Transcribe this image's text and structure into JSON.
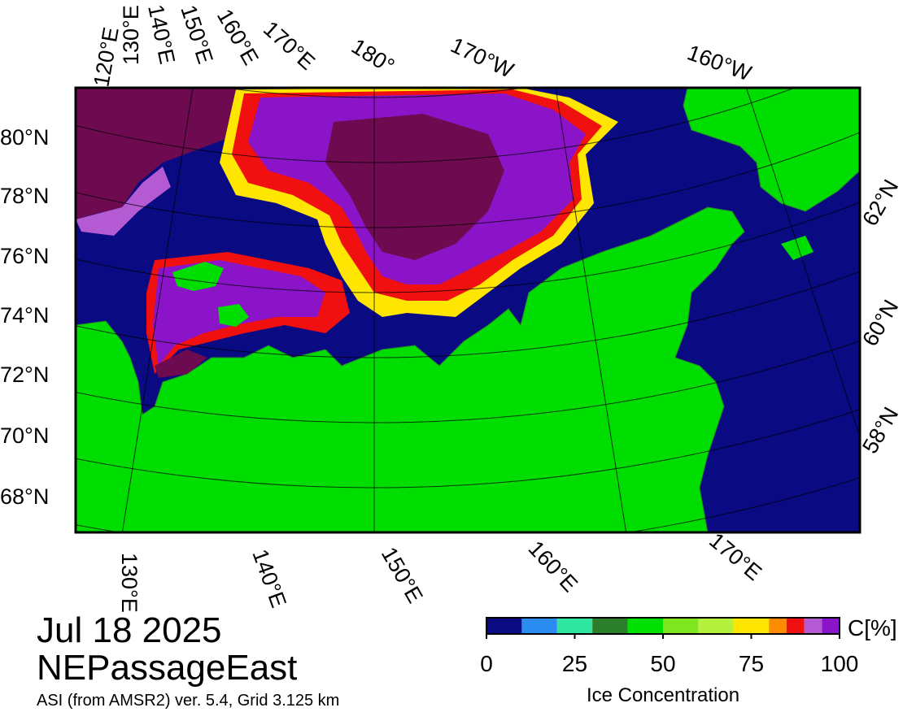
{
  "map": {
    "top_labels": [
      "120°E",
      "130°E",
      "140°E",
      "150°E",
      "160°E",
      "170°E",
      "180°",
      "170°W",
      "160°W"
    ],
    "left_labels": [
      "80°N",
      "78°N",
      "76°N",
      "74°N",
      "72°N",
      "70°N",
      "68°N"
    ],
    "right_labels": [
      "62°N",
      "60°N",
      "58°N"
    ],
    "bottom_labels": [
      "130°E",
      "140°E",
      "150°E",
      "160°E",
      "170°E"
    ]
  },
  "date": "Jul 18 2025",
  "region": "NEPassageEast",
  "source": "ASI (from AMSR2) ver. 5.4,  Grid 3.125 km",
  "colorbar": {
    "label": "Ice Concentration",
    "unit": "C[%]",
    "lim": [
      0,
      100
    ],
    "ticks": [
      0,
      25,
      50,
      75,
      100
    ],
    "bounds": [
      0,
      10,
      20,
      30,
      40,
      50,
      60,
      70,
      80,
      85,
      90,
      95,
      100
    ],
    "colors": [
      "#0a0a82",
      "#2a8cf0",
      "#2ee6a0",
      "#2b7f2b",
      "#00e000",
      "#7ee61e",
      "#b4f03c",
      "#ffe600",
      "#ff8c00",
      "#f01010",
      "#b45ad2",
      "#8c14c8"
    ]
  }
}
